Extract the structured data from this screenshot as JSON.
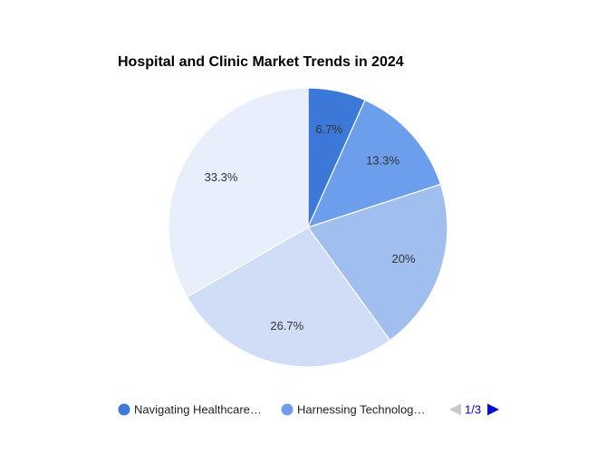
{
  "chart_data": {
    "type": "pie",
    "title": "Hospital and Clinic Market Trends in 2024",
    "slices": [
      {
        "name": "Navigating Healthcare…",
        "value": 6.7,
        "label": "6.7%",
        "color": "#3c78d8"
      },
      {
        "name": "Harnessing Technolog…",
        "value": 13.3,
        "label": "13.3%",
        "color": "#6d9eeb"
      },
      {
        "name": "",
        "value": 20,
        "label": "20%",
        "color": "#a0bfee"
      },
      {
        "name": "",
        "value": 26.7,
        "label": "26.7%",
        "color": "#cfdef6"
      },
      {
        "name": "",
        "value": 33.3,
        "label": "33.3%",
        "color": "#e8eefa"
      }
    ],
    "legend": {
      "position": "bottom",
      "page": "1/3"
    }
  }
}
